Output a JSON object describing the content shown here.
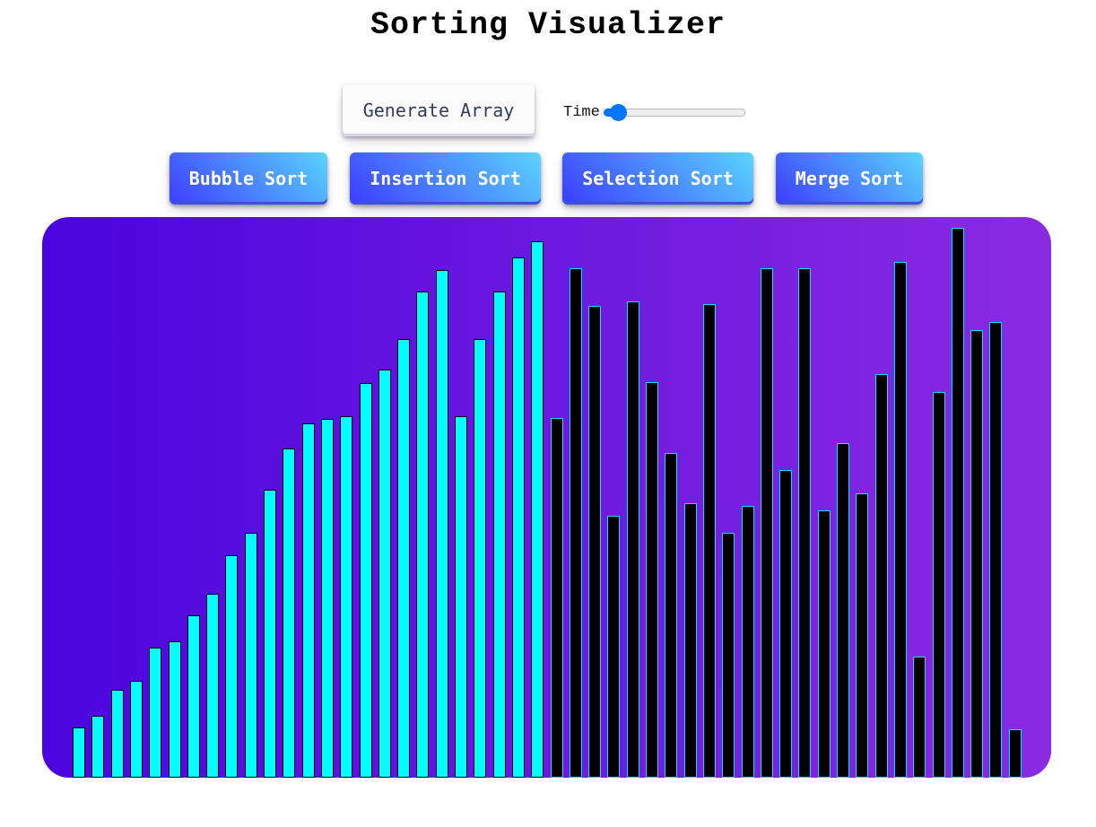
{
  "title": "Sorting Visualizer",
  "controls": {
    "generate_label": "Generate Array",
    "time_label": "Time",
    "time_value_fraction": 0.04
  },
  "sort_buttons": [
    {
      "label": "Bubble Sort"
    },
    {
      "label": "Insertion Sort"
    },
    {
      "label": "Selection Sort"
    },
    {
      "label": "Merge Sort"
    }
  ],
  "colors": {
    "sorted_bar": "#00ffff",
    "unsorted_bar": "#000000",
    "bar_outline": "#00e5ff"
  },
  "array": {
    "max_value": 100,
    "values": [
      9.2,
      11.2,
      16,
      17.6,
      23.6,
      24.8,
      29.6,
      33.4,
      40.4,
      44.6,
      52.4,
      59.8,
      64.4,
      65.2,
      65.8,
      71.8,
      74.2,
      79.8,
      88.4,
      92.4,
      65.8,
      79.8,
      88.4,
      94.6,
      97.6,
      65.4,
      92.6,
      85.8,
      47.6,
      86.6,
      72.0,
      59.0,
      50.0,
      86.2,
      44.6,
      49.4,
      92.6,
      56.0,
      92.6,
      48.6,
      60.8,
      51.8,
      73.4,
      93.8,
      22.0,
      70.2,
      100.0,
      81.4,
      82.8,
      8.8
    ],
    "sorted_count": 25
  }
}
